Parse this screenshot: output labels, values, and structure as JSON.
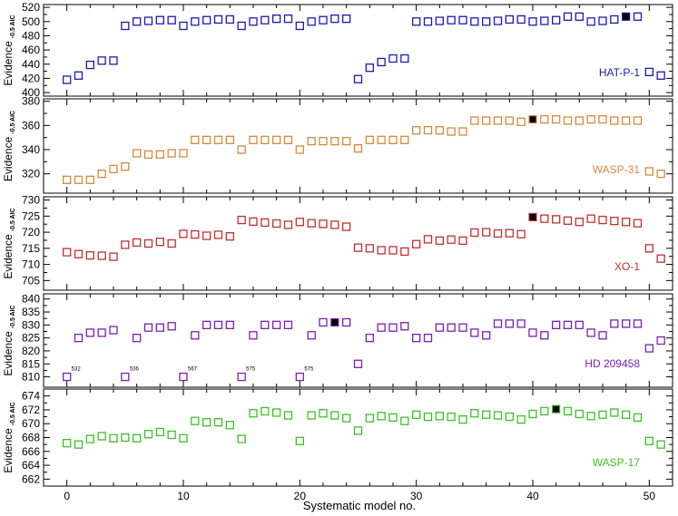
{
  "chart_data": {
    "type": "scatter",
    "xlabel": "Systematic model no.",
    "x_ticks": [
      0,
      10,
      20,
      30,
      40,
      50
    ],
    "xlim": [
      -2,
      52
    ],
    "panels": [
      {
        "name": "HAT-P-1",
        "ylabel": "Evidence",
        "ylabel_sub": "-0.5 AIC",
        "color": "#1a1ab4",
        "ylim": [
          395,
          524
        ],
        "y_ticks": [
          400,
          420,
          440,
          460,
          480,
          500,
          520
        ],
        "best": 48,
        "points": [
          [
            0,
            418
          ],
          [
            1,
            424
          ],
          [
            2,
            439
          ],
          [
            3,
            445
          ],
          [
            4,
            445
          ],
          [
            5,
            494
          ],
          [
            6,
            500
          ],
          [
            7,
            501
          ],
          [
            8,
            502
          ],
          [
            9,
            502
          ],
          [
            10,
            494
          ],
          [
            11,
            500
          ],
          [
            12,
            502
          ],
          [
            13,
            503
          ],
          [
            14,
            503
          ],
          [
            15,
            494
          ],
          [
            16,
            500
          ],
          [
            17,
            502
          ],
          [
            18,
            504
          ],
          [
            19,
            504
          ],
          [
            20,
            494
          ],
          [
            21,
            500
          ],
          [
            22,
            502
          ],
          [
            23,
            504
          ],
          [
            24,
            504
          ],
          [
            25,
            419
          ],
          [
            26,
            435
          ],
          [
            27,
            443
          ],
          [
            28,
            448
          ],
          [
            29,
            448
          ],
          [
            30,
            500
          ],
          [
            31,
            500
          ],
          [
            32,
            501
          ],
          [
            33,
            502
          ],
          [
            34,
            502
          ],
          [
            35,
            500
          ],
          [
            36,
            500
          ],
          [
            37,
            501
          ],
          [
            38,
            503
          ],
          [
            39,
            503
          ],
          [
            40,
            500
          ],
          [
            41,
            501
          ],
          [
            42,
            502
          ],
          [
            43,
            507
          ],
          [
            44,
            507
          ],
          [
            45,
            500
          ],
          [
            46,
            501
          ],
          [
            47,
            503
          ],
          [
            48,
            507
          ],
          [
            49,
            507
          ],
          [
            50,
            429
          ],
          [
            51,
            424
          ]
        ]
      },
      {
        "name": "WASP-31",
        "ylabel": "Evidence",
        "ylabel_sub": "-0.5 AIC",
        "color": "#d48a3c",
        "ylim": [
          304,
          382
        ],
        "y_ticks": [
          320,
          340,
          360,
          380
        ],
        "best": 40,
        "points": [
          [
            0,
            315
          ],
          [
            1,
            315
          ],
          [
            2,
            315
          ],
          [
            3,
            320
          ],
          [
            4,
            324
          ],
          [
            5,
            326
          ],
          [
            6,
            337
          ],
          [
            7,
            336
          ],
          [
            8,
            336
          ],
          [
            9,
            337
          ],
          [
            10,
            337
          ],
          [
            11,
            348
          ],
          [
            12,
            348
          ],
          [
            13,
            348
          ],
          [
            14,
            348
          ],
          [
            15,
            340
          ],
          [
            16,
            348
          ],
          [
            17,
            348
          ],
          [
            18,
            348
          ],
          [
            19,
            348
          ],
          [
            20,
            340
          ],
          [
            21,
            347
          ],
          [
            22,
            347
          ],
          [
            23,
            347
          ],
          [
            24,
            347
          ],
          [
            25,
            341
          ],
          [
            26,
            348
          ],
          [
            27,
            348
          ],
          [
            28,
            348
          ],
          [
            29,
            348
          ],
          [
            30,
            356
          ],
          [
            31,
            356
          ],
          [
            32,
            356
          ],
          [
            33,
            355
          ],
          [
            34,
            355
          ],
          [
            35,
            364
          ],
          [
            36,
            364
          ],
          [
            37,
            364
          ],
          [
            38,
            364
          ],
          [
            39,
            363
          ],
          [
            40,
            365
          ],
          [
            41,
            365
          ],
          [
            42,
            365
          ],
          [
            43,
            364
          ],
          [
            44,
            364
          ],
          [
            45,
            365
          ],
          [
            46,
            365
          ],
          [
            47,
            364
          ],
          [
            48,
            364
          ],
          [
            49,
            364
          ],
          [
            50,
            322
          ],
          [
            51,
            320
          ]
        ]
      },
      {
        "name": "XO-1",
        "ylabel": "Evidence",
        "ylabel_sub": "-0.5 AIC",
        "color": "#c03030",
        "ylim": [
          702,
          731
        ],
        "y_ticks": [
          705,
          710,
          715,
          720,
          725,
          730
        ],
        "best": 40,
        "points": [
          [
            0,
            713.8
          ],
          [
            1,
            713.2
          ],
          [
            2,
            712.8
          ],
          [
            3,
            712.7
          ],
          [
            4,
            712.4
          ],
          [
            5,
            716.1
          ],
          [
            6,
            716.8
          ],
          [
            7,
            716.5
          ],
          [
            8,
            717.0
          ],
          [
            9,
            716.5
          ],
          [
            10,
            719.5
          ],
          [
            11,
            719.3
          ],
          [
            12,
            718.9
          ],
          [
            13,
            719.2
          ],
          [
            14,
            718.7
          ],
          [
            15,
            723.8
          ],
          [
            16,
            723.3
          ],
          [
            17,
            723.0
          ],
          [
            18,
            722.7
          ],
          [
            19,
            722.3
          ],
          [
            20,
            723.2
          ],
          [
            21,
            722.8
          ],
          [
            22,
            722.6
          ],
          [
            23,
            722.3
          ],
          [
            24,
            721.7
          ],
          [
            25,
            715.2
          ],
          [
            26,
            715.0
          ],
          [
            27,
            714.4
          ],
          [
            28,
            714.4
          ],
          [
            29,
            714.0
          ],
          [
            30,
            716.3
          ],
          [
            31,
            717.8
          ],
          [
            32,
            717.4
          ],
          [
            33,
            717.7
          ],
          [
            34,
            717.4
          ],
          [
            35,
            719.9
          ],
          [
            36,
            720.0
          ],
          [
            37,
            719.6
          ],
          [
            38,
            719.7
          ],
          [
            39,
            719.4
          ],
          [
            40,
            724.7
          ],
          [
            41,
            724.2
          ],
          [
            42,
            724.0
          ],
          [
            43,
            723.6
          ],
          [
            44,
            723.2
          ],
          [
            45,
            724.2
          ],
          [
            46,
            723.8
          ],
          [
            47,
            723.5
          ],
          [
            48,
            723.2
          ],
          [
            49,
            722.8
          ],
          [
            50,
            715.0
          ],
          [
            51,
            711.8
          ]
        ]
      },
      {
        "name": "HD 209458",
        "ylabel": "Evidence",
        "ylabel_sub": "-0.5 AIC",
        "color": "#7a1eb4",
        "ylim": [
          806,
          842
        ],
        "y_ticks": [
          810,
          815,
          820,
          825,
          830,
          835,
          840
        ],
        "best": 23,
        "annotations": [
          {
            "x": 0,
            "text": "532"
          },
          {
            "x": 5,
            "text": "536"
          },
          {
            "x": 10,
            "text": "567"
          },
          {
            "x": 15,
            "text": "575"
          },
          {
            "x": 20,
            "text": "575"
          }
        ],
        "points": [
          [
            0,
            810
          ],
          [
            1,
            825
          ],
          [
            2,
            827
          ],
          [
            3,
            827
          ],
          [
            4,
            828
          ],
          [
            5,
            810
          ],
          [
            6,
            825
          ],
          [
            7,
            829
          ],
          [
            8,
            829
          ],
          [
            9,
            829.5
          ],
          [
            10,
            810
          ],
          [
            11,
            826
          ],
          [
            12,
            830
          ],
          [
            13,
            830
          ],
          [
            14,
            830
          ],
          [
            15,
            810
          ],
          [
            16,
            826
          ],
          [
            17,
            830
          ],
          [
            18,
            830
          ],
          [
            19,
            830
          ],
          [
            20,
            810
          ],
          [
            21,
            826
          ],
          [
            22,
            831
          ],
          [
            23,
            831
          ],
          [
            24,
            831
          ],
          [
            25,
            815
          ],
          [
            26,
            825
          ],
          [
            27,
            829
          ],
          [
            28,
            829
          ],
          [
            29,
            829.5
          ],
          [
            30,
            825
          ],
          [
            31,
            825
          ],
          [
            32,
            829
          ],
          [
            33,
            829
          ],
          [
            34,
            829
          ],
          [
            35,
            827
          ],
          [
            36,
            826
          ],
          [
            37,
            830.5
          ],
          [
            38,
            830.5
          ],
          [
            39,
            830.5
          ],
          [
            40,
            827
          ],
          [
            41,
            826
          ],
          [
            42,
            830
          ],
          [
            43,
            830
          ],
          [
            44,
            830
          ],
          [
            45,
            827
          ],
          [
            46,
            826
          ],
          [
            47,
            830.5
          ],
          [
            48,
            830.5
          ],
          [
            49,
            830.5
          ],
          [
            50,
            821
          ],
          [
            51,
            824
          ]
        ]
      },
      {
        "name": "WASP-17",
        "ylabel": "Evidence",
        "ylabel_sub": "-0.5 AIC",
        "color": "#3cc026",
        "ylim": [
          661,
          675
        ],
        "y_ticks": [
          662,
          664,
          666,
          668,
          670,
          672,
          674
        ],
        "best": 42,
        "points": [
          [
            0,
            667.2
          ],
          [
            1,
            667.0
          ],
          [
            2,
            667.8
          ],
          [
            3,
            668.2
          ],
          [
            4,
            667.9
          ],
          [
            5,
            668.0
          ],
          [
            6,
            667.9
          ],
          [
            7,
            668.5
          ],
          [
            8,
            668.8
          ],
          [
            9,
            668.4
          ],
          [
            10,
            667.9
          ],
          [
            11,
            670.4
          ],
          [
            12,
            670.2
          ],
          [
            13,
            670.2
          ],
          [
            14,
            669.8
          ],
          [
            15,
            667.8
          ],
          [
            16,
            671.5
          ],
          [
            17,
            671.8
          ],
          [
            18,
            671.6
          ],
          [
            19,
            671.2
          ],
          [
            20,
            667.5
          ],
          [
            21,
            671.2
          ],
          [
            22,
            671.5
          ],
          [
            23,
            671.2
          ],
          [
            24,
            670.8
          ],
          [
            25,
            669.0
          ],
          [
            26,
            670.8
          ],
          [
            27,
            671.1
          ],
          [
            28,
            670.9
          ],
          [
            29,
            670.4
          ],
          [
            30,
            671.3
          ],
          [
            31,
            671.0
          ],
          [
            32,
            671.1
          ],
          [
            33,
            671.0
          ],
          [
            34,
            670.6
          ],
          [
            35,
            671.5
          ],
          [
            36,
            671.3
          ],
          [
            37,
            671.2
          ],
          [
            38,
            671.0
          ],
          [
            39,
            670.6
          ],
          [
            40,
            671.4
          ],
          [
            41,
            671.8
          ],
          [
            42,
            672.1
          ],
          [
            43,
            671.8
          ],
          [
            44,
            671.4
          ],
          [
            45,
            671.1
          ],
          [
            46,
            671.3
          ],
          [
            47,
            671.6
          ],
          [
            48,
            671.3
          ],
          [
            49,
            670.9
          ],
          [
            50,
            667.5
          ],
          [
            51,
            667.0
          ]
        ]
      }
    ]
  }
}
